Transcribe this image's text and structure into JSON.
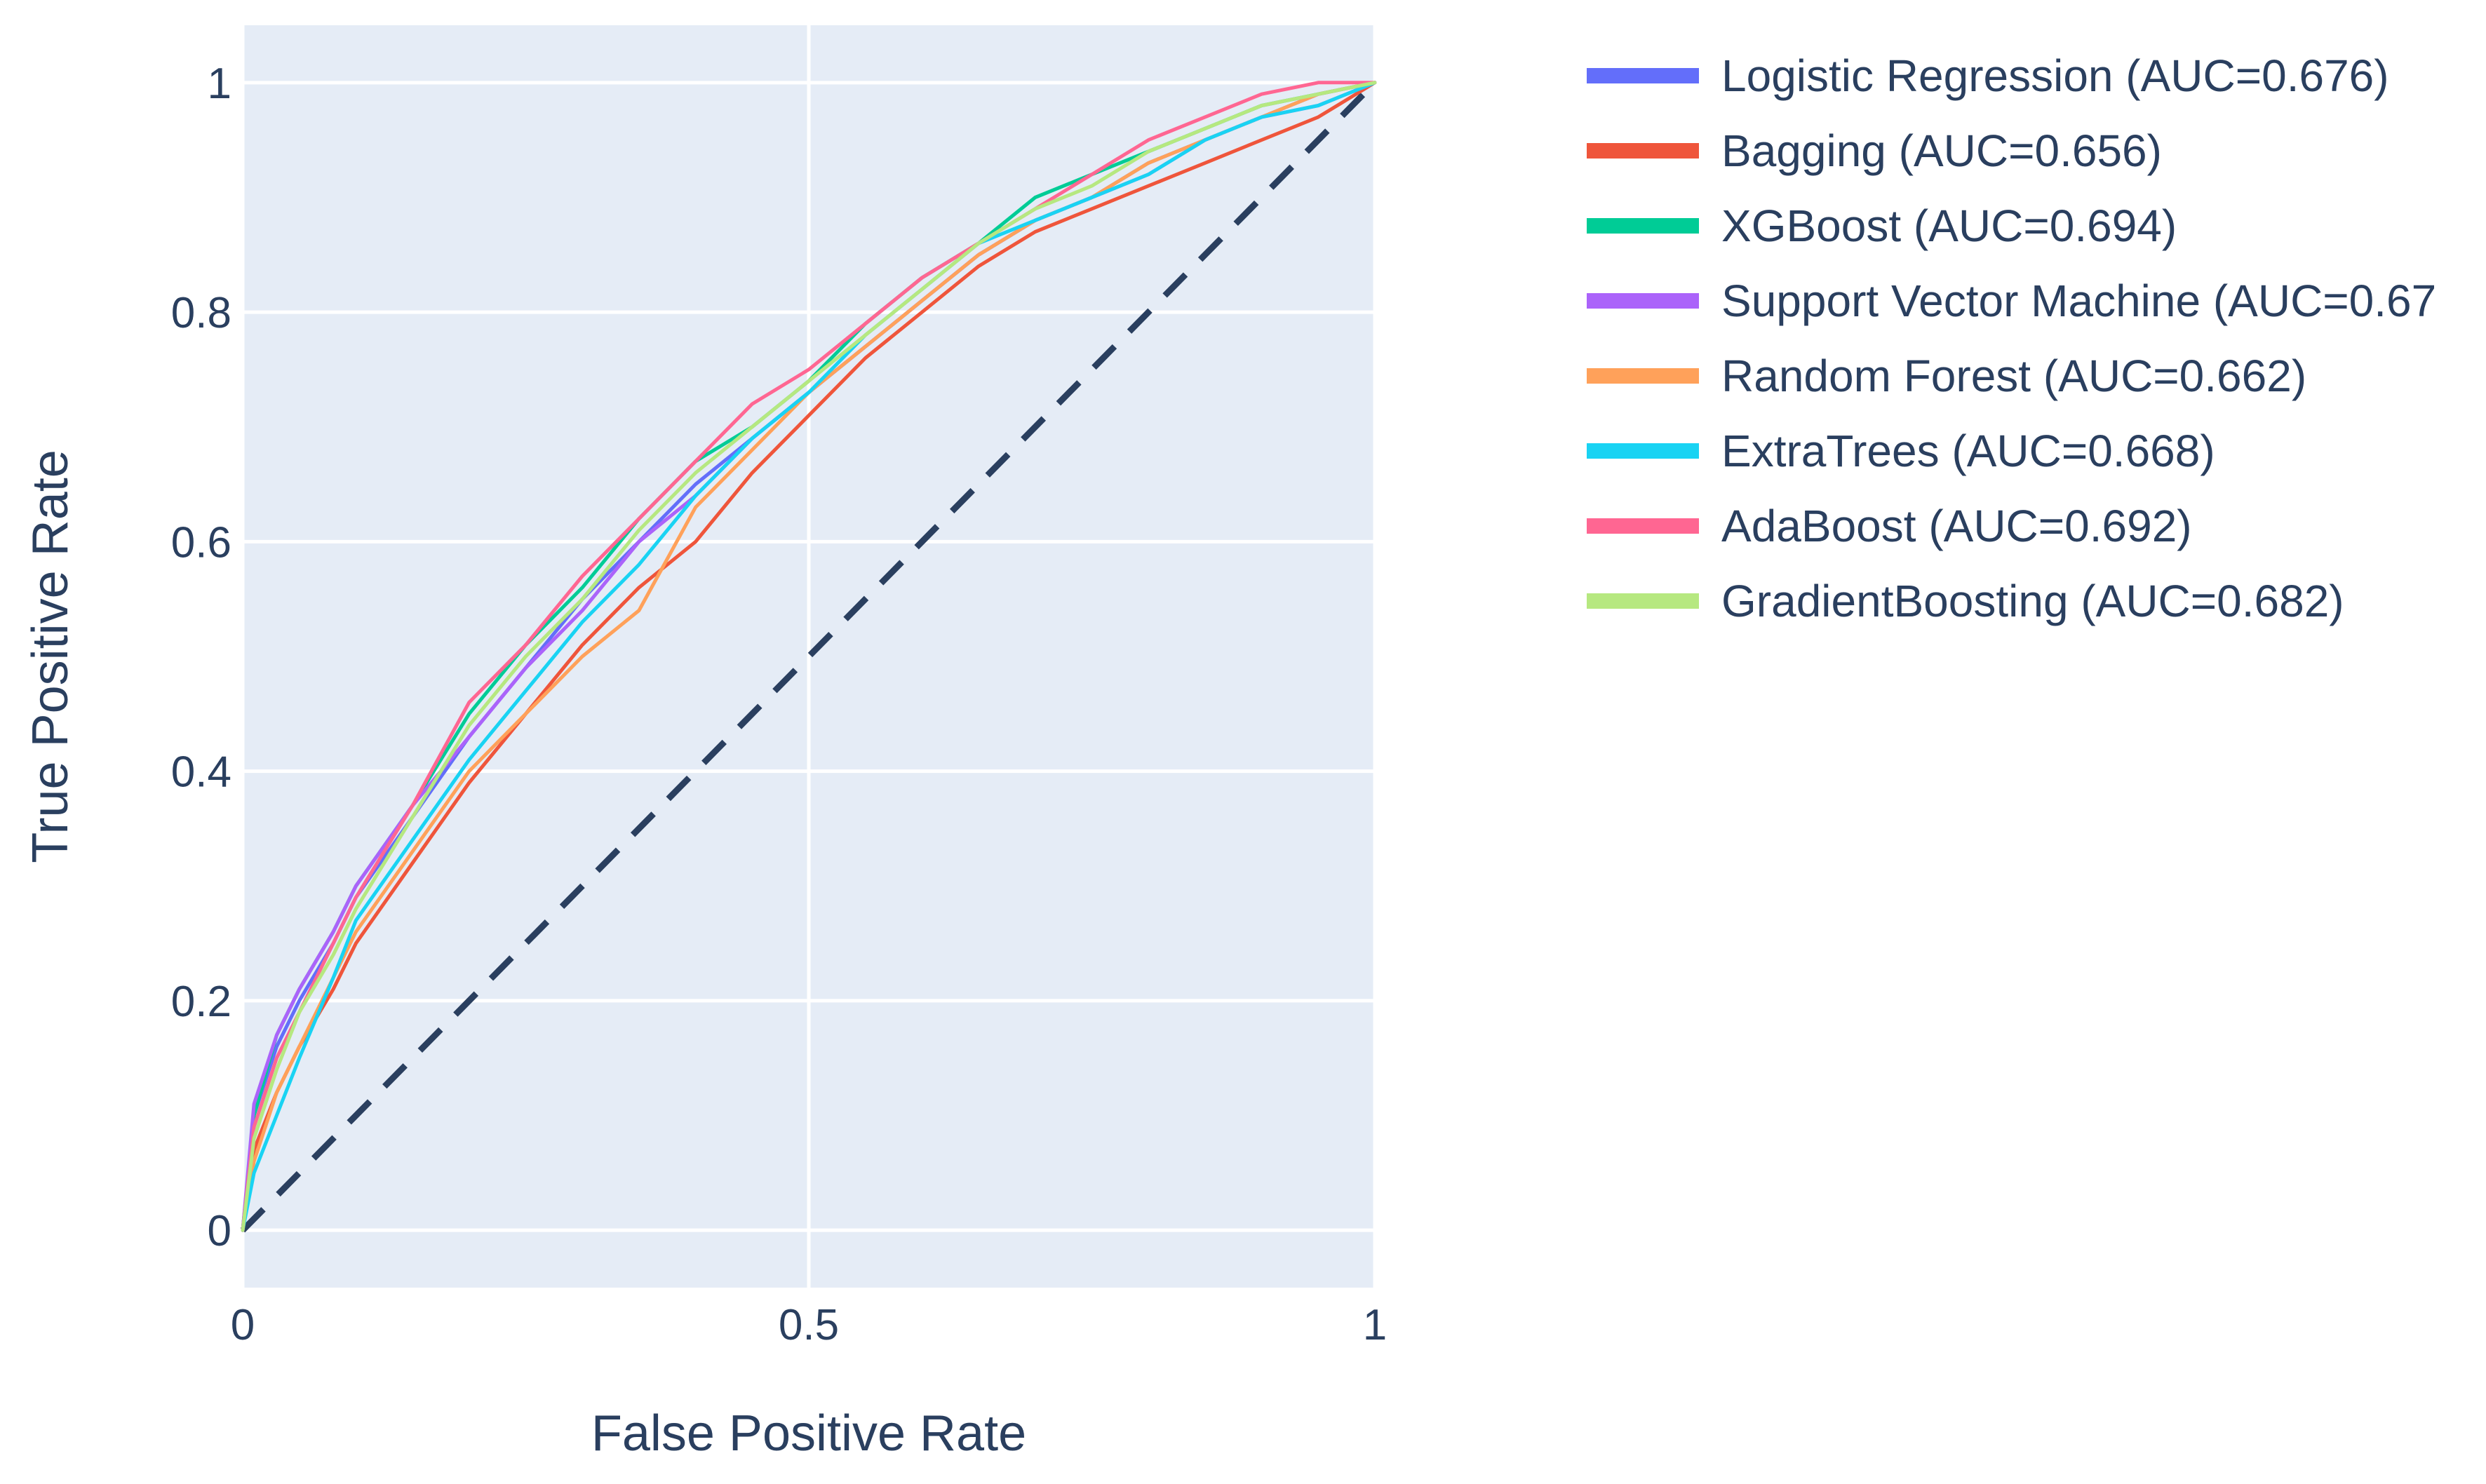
{
  "chart_data": {
    "type": "line",
    "title": "",
    "xlabel": "False Positive Rate",
    "ylabel": "True Positive Rate",
    "xlim": [
      0,
      1
    ],
    "ylim": [
      -0.05,
      1.05
    ],
    "x_ticks": [
      0,
      0.5,
      1
    ],
    "x_tick_labels": [
      "0",
      "0.5",
      "1"
    ],
    "y_ticks": [
      0,
      0.2,
      0.4,
      0.6,
      0.8,
      1
    ],
    "y_tick_labels": [
      "0",
      "0.2",
      "0.4",
      "0.6",
      "0.8",
      "1"
    ],
    "grid": true,
    "legend_position": "right",
    "plot_background": "#e5ecf6",
    "reference_line": {
      "name": "chance",
      "x": [
        0,
        1
      ],
      "y": [
        0,
        1
      ],
      "color": "#2a3f5f",
      "dash": "dashed"
    },
    "series": [
      {
        "name": "Logistic Regression (AUC=0.676)",
        "color": "#636efa",
        "x": [
          0,
          0.01,
          0.03,
          0.05,
          0.08,
          0.1,
          0.15,
          0.2,
          0.25,
          0.3,
          0.35,
          0.4,
          0.45,
          0.5,
          0.55,
          0.6,
          0.65,
          0.7,
          0.75,
          0.8,
          0.85,
          0.9,
          0.95,
          1
        ],
        "y": [
          0,
          0.1,
          0.16,
          0.2,
          0.25,
          0.29,
          0.36,
          0.43,
          0.49,
          0.55,
          0.6,
          0.65,
          0.69,
          0.73,
          0.77,
          0.81,
          0.85,
          0.88,
          0.9,
          0.93,
          0.95,
          0.97,
          0.99,
          1
        ]
      },
      {
        "name": "Bagging (AUC=0.656)",
        "color": "#ef553b",
        "x": [
          0,
          0.01,
          0.03,
          0.05,
          0.08,
          0.1,
          0.15,
          0.2,
          0.25,
          0.3,
          0.35,
          0.4,
          0.45,
          0.5,
          0.55,
          0.6,
          0.65,
          0.7,
          0.75,
          0.8,
          0.85,
          0.9,
          0.95,
          1
        ],
        "y": [
          0,
          0.07,
          0.12,
          0.16,
          0.21,
          0.25,
          0.32,
          0.39,
          0.45,
          0.51,
          0.56,
          0.6,
          0.66,
          0.71,
          0.76,
          0.8,
          0.84,
          0.87,
          0.89,
          0.91,
          0.93,
          0.95,
          0.97,
          1
        ]
      },
      {
        "name": "XGBoost (AUC=0.694)",
        "color": "#00cc96",
        "x": [
          0,
          0.01,
          0.03,
          0.05,
          0.08,
          0.1,
          0.15,
          0.2,
          0.25,
          0.3,
          0.35,
          0.4,
          0.45,
          0.5,
          0.55,
          0.6,
          0.65,
          0.7,
          0.75,
          0.8,
          0.85,
          0.9,
          0.95,
          1
        ],
        "y": [
          0,
          0.1,
          0.17,
          0.21,
          0.26,
          0.3,
          0.37,
          0.45,
          0.51,
          0.56,
          0.62,
          0.67,
          0.7,
          0.74,
          0.79,
          0.83,
          0.86,
          0.9,
          0.92,
          0.94,
          0.96,
          0.98,
          0.99,
          1
        ]
      },
      {
        "name": "Support Vector Machine (AUC=0.67",
        "color": "#ab63fa",
        "x": [
          0,
          0.01,
          0.03,
          0.05,
          0.08,
          0.1,
          0.15,
          0.2,
          0.25,
          0.3,
          0.35,
          0.4,
          0.45,
          0.5,
          0.55,
          0.6,
          0.65,
          0.7,
          0.75,
          0.8,
          0.85,
          0.9,
          0.95,
          1
        ],
        "y": [
          0,
          0.11,
          0.17,
          0.21,
          0.26,
          0.3,
          0.37,
          0.43,
          0.49,
          0.54,
          0.6,
          0.64,
          0.69,
          0.73,
          0.77,
          0.81,
          0.85,
          0.88,
          0.9,
          0.92,
          0.95,
          0.97,
          0.98,
          1
        ]
      },
      {
        "name": "Random Forest (AUC=0.662)",
        "color": "#ffa15a",
        "x": [
          0,
          0.01,
          0.03,
          0.05,
          0.08,
          0.1,
          0.15,
          0.2,
          0.25,
          0.3,
          0.35,
          0.4,
          0.45,
          0.5,
          0.55,
          0.6,
          0.65,
          0.7,
          0.75,
          0.8,
          0.85,
          0.9,
          0.95,
          1
        ],
        "y": [
          0,
          0.06,
          0.12,
          0.16,
          0.22,
          0.26,
          0.33,
          0.4,
          0.45,
          0.5,
          0.54,
          0.63,
          0.68,
          0.73,
          0.77,
          0.81,
          0.85,
          0.88,
          0.9,
          0.93,
          0.95,
          0.97,
          0.99,
          1
        ]
      },
      {
        "name": "ExtraTrees (AUC=0.668)",
        "color": "#19d3f3",
        "x": [
          0,
          0.01,
          0.03,
          0.05,
          0.08,
          0.1,
          0.15,
          0.2,
          0.25,
          0.3,
          0.35,
          0.4,
          0.45,
          0.5,
          0.55,
          0.6,
          0.65,
          0.7,
          0.75,
          0.8,
          0.85,
          0.9,
          0.95,
          1
        ],
        "y": [
          0,
          0.05,
          0.1,
          0.15,
          0.22,
          0.27,
          0.34,
          0.41,
          0.47,
          0.53,
          0.58,
          0.64,
          0.69,
          0.73,
          0.78,
          0.82,
          0.86,
          0.88,
          0.9,
          0.92,
          0.95,
          0.97,
          0.98,
          1
        ]
      },
      {
        "name": "AdaBoost (AUC=0.692)",
        "color": "#ff6692",
        "x": [
          0,
          0.01,
          0.03,
          0.05,
          0.08,
          0.1,
          0.15,
          0.2,
          0.25,
          0.3,
          0.35,
          0.4,
          0.45,
          0.5,
          0.55,
          0.6,
          0.65,
          0.7,
          0.75,
          0.8,
          0.85,
          0.9,
          0.95,
          1
        ],
        "y": [
          0,
          0.09,
          0.15,
          0.19,
          0.25,
          0.29,
          0.37,
          0.46,
          0.51,
          0.57,
          0.62,
          0.67,
          0.72,
          0.75,
          0.79,
          0.83,
          0.86,
          0.89,
          0.92,
          0.95,
          0.97,
          0.99,
          1,
          1
        ]
      },
      {
        "name": "GradientBoosting (AUC=0.682)",
        "color": "#b6e880",
        "x": [
          0,
          0.01,
          0.03,
          0.05,
          0.08,
          0.1,
          0.15,
          0.2,
          0.25,
          0.3,
          0.35,
          0.4,
          0.45,
          0.5,
          0.55,
          0.6,
          0.65,
          0.7,
          0.75,
          0.8,
          0.85,
          0.9,
          0.95,
          1
        ],
        "y": [
          0,
          0.08,
          0.14,
          0.19,
          0.24,
          0.28,
          0.36,
          0.44,
          0.5,
          0.55,
          0.61,
          0.66,
          0.7,
          0.74,
          0.78,
          0.82,
          0.86,
          0.89,
          0.91,
          0.94,
          0.96,
          0.98,
          0.99,
          1
        ]
      }
    ]
  }
}
